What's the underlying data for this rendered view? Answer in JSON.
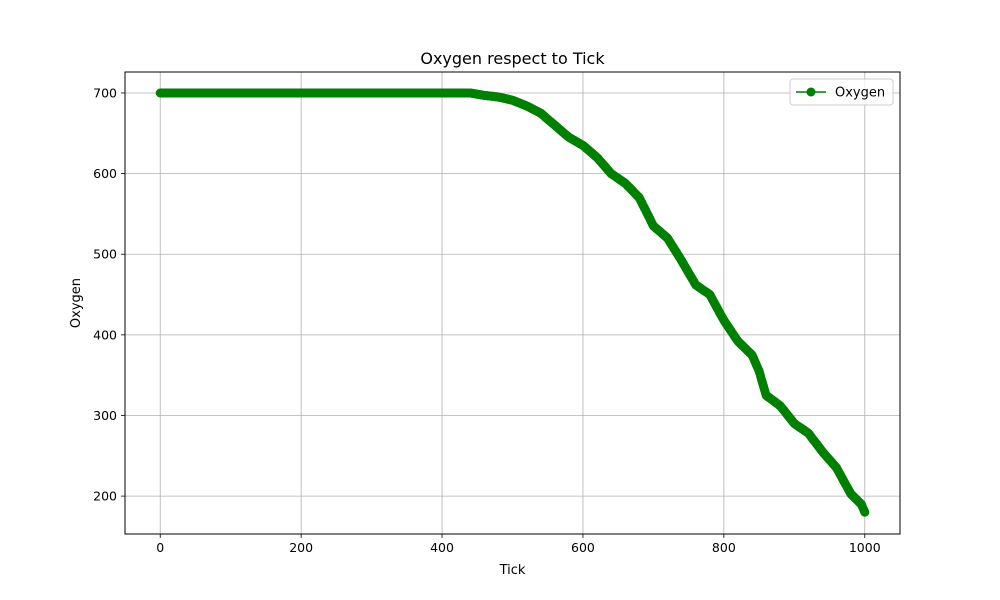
{
  "chart_data": {
    "type": "line",
    "title": "Oxygen respect to Tick",
    "xlabel": "Tick",
    "ylabel": "Oxygen",
    "xlim": [
      -50,
      1050
    ],
    "ylim": [
      153,
      726
    ],
    "xticks": [
      0,
      200,
      400,
      600,
      800,
      1000
    ],
    "yticks": [
      200,
      300,
      400,
      500,
      600,
      700
    ],
    "xtick_labels": [
      "0",
      "200",
      "400",
      "600",
      "800",
      "1000"
    ],
    "ytick_labels": [
      "200",
      "300",
      "400",
      "500",
      "600",
      "700"
    ],
    "grid": true,
    "legend": {
      "position": "upper-right",
      "entries": [
        "Oxygen"
      ]
    },
    "series": [
      {
        "name": "Oxygen",
        "color": "#008000",
        "marker": "circle",
        "points": [
          [
            0,
            700
          ],
          [
            440,
            700
          ],
          [
            460,
            697
          ],
          [
            480,
            695
          ],
          [
            500,
            691
          ],
          [
            520,
            684
          ],
          [
            540,
            675
          ],
          [
            560,
            660
          ],
          [
            580,
            645
          ],
          [
            600,
            635
          ],
          [
            620,
            620
          ],
          [
            640,
            600
          ],
          [
            660,
            588
          ],
          [
            680,
            570
          ],
          [
            700,
            535
          ],
          [
            720,
            520
          ],
          [
            740,
            492
          ],
          [
            760,
            462
          ],
          [
            780,
            450
          ],
          [
            800,
            418
          ],
          [
            820,
            392
          ],
          [
            840,
            375
          ],
          [
            850,
            355
          ],
          [
            860,
            325
          ],
          [
            880,
            312
          ],
          [
            900,
            290
          ],
          [
            920,
            278
          ],
          [
            940,
            255
          ],
          [
            960,
            235
          ],
          [
            980,
            203
          ],
          [
            995,
            190
          ],
          [
            1000,
            180
          ]
        ]
      }
    ]
  }
}
